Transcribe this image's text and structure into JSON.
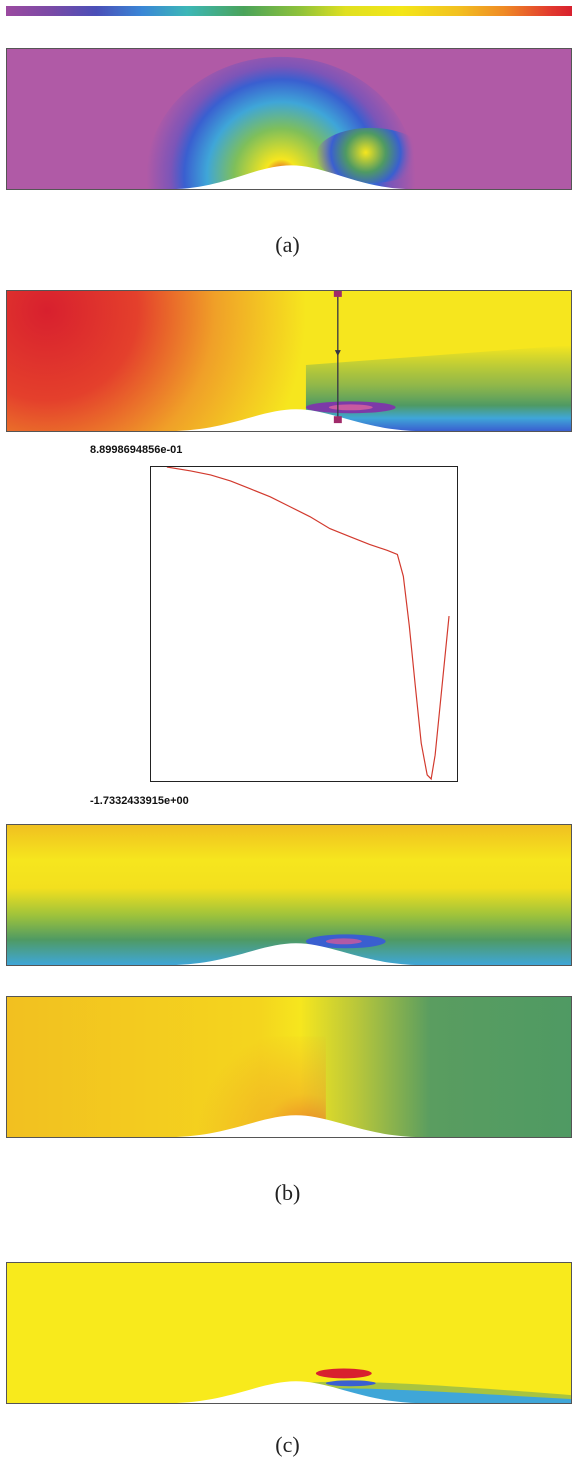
{
  "captions": {
    "a": "(a)",
    "b": "(b)",
    "c": "(c)"
  },
  "plot": {
    "max_label": "8.8998694856e-01",
    "min_label": "-1.7332433915e+00"
  },
  "colors": {
    "magenta": "#b05aa6",
    "blue": "#3a5fd0",
    "cyan": "#3fa6d8",
    "green": "#4f9a63",
    "yellow": "#f6e61e",
    "orange": "#f0a028",
    "red": "#d8202e",
    "plot_line": "#d23a2e"
  }
}
